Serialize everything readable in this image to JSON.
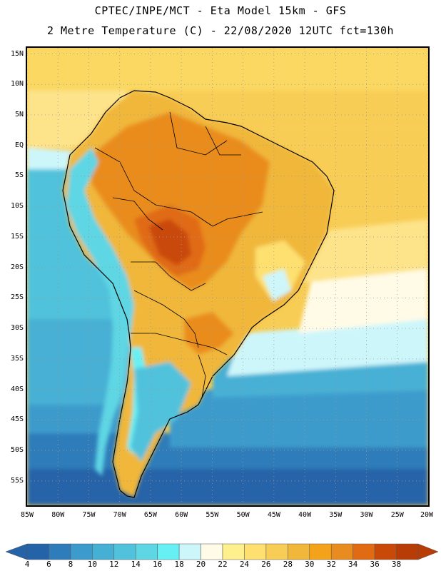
{
  "header": {
    "line1": "CPTEC/INPE/MCT -  Eta Model 15km - GFS",
    "line2": "2 Metre Temperature (C) - 22/08/2020 12UTC fct=130h"
  },
  "axes": {
    "lat_labels": [
      "15N",
      "10N",
      "5N",
      "EQ",
      "5S",
      "10S",
      "15S",
      "20S",
      "25S",
      "30S",
      "35S",
      "40S",
      "45S",
      "50S",
      "55S"
    ],
    "lon_labels": [
      "85W",
      "80W",
      "75W",
      "70W",
      "65W",
      "60W",
      "55W",
      "50W",
      "45W",
      "40W",
      "35W",
      "30W",
      "25W",
      "20W"
    ],
    "lon_range": [
      -85,
      -20
    ],
    "lat_range": [
      -59,
      16
    ],
    "grid": "dotted"
  },
  "legend": {
    "levels": [
      "4",
      "6",
      "8",
      "10",
      "12",
      "14",
      "16",
      "18",
      "20",
      "22",
      "24",
      "26",
      "28",
      "30",
      "32",
      "34",
      "36",
      "38"
    ],
    "colors": [
      "#2563a8",
      "#2f7cba",
      "#3c9bcc",
      "#46b0d4",
      "#51c2dc",
      "#5ed6e4",
      "#66f0f4",
      "#cdf6fb",
      "#fffbe6",
      "#fef08c",
      "#fde070",
      "#f8cd55",
      "#f0b73b",
      "#f3a21a",
      "#e98c1f",
      "#e06b12",
      "#c94a08",
      "#b83c05"
    ]
  },
  "chart_data": {
    "type": "heatmap",
    "title": "2 Metre Temperature (C)",
    "model": "Eta Model 15km - GFS",
    "run": "22/08/2020 12UTC",
    "forecast_hour": 130,
    "x_range": [
      -85,
      -20
    ],
    "y_range": [
      -59,
      16
    ],
    "colorbar_values": [
      4,
      6,
      8,
      10,
      12,
      14,
      16,
      18,
      20,
      22,
      24,
      26,
      28,
      30,
      32,
      34,
      36,
      38
    ]
  }
}
